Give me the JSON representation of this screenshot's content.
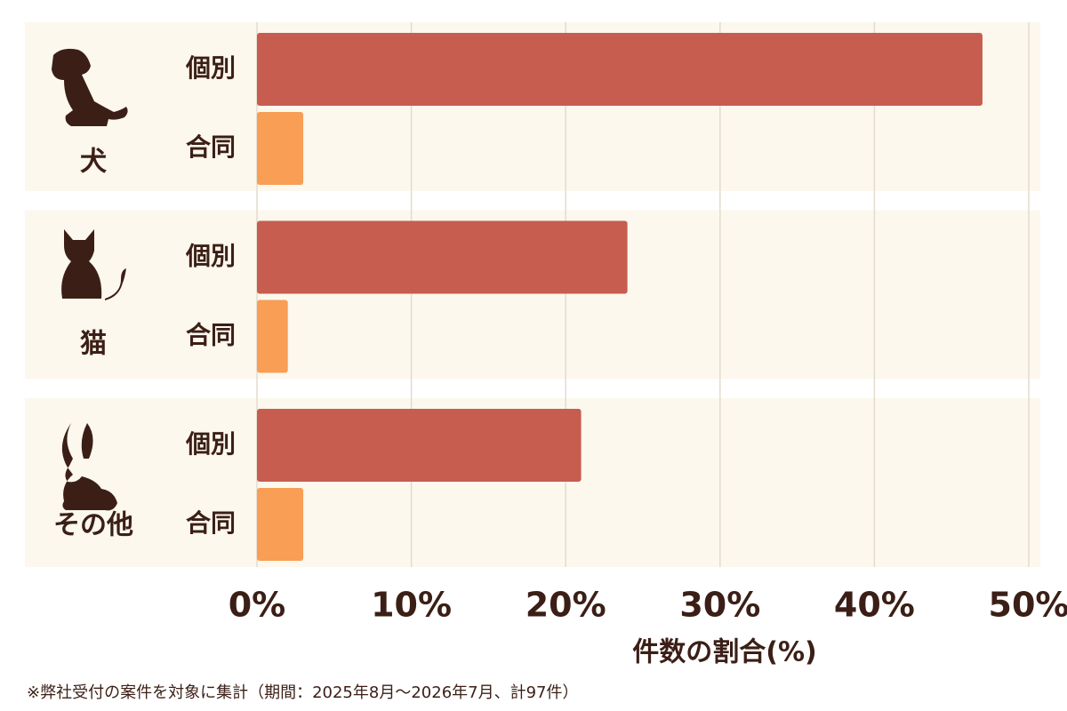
{
  "chart_data": {
    "type": "bar",
    "orientation": "horizontal",
    "categories": [
      "犬",
      "猫",
      "その他"
    ],
    "series": [
      {
        "name": "個別",
        "color": "#c65d4f",
        "values": [
          47,
          24,
          21
        ]
      },
      {
        "name": "合同",
        "color": "#f89e55",
        "values": [
          3,
          2,
          3
        ]
      }
    ],
    "xlim": [
      0,
      50
    ],
    "xticks": [
      {
        "value": 0,
        "label": "0%"
      },
      {
        "value": 10,
        "label": "10%"
      },
      {
        "value": 20,
        "label": "20%"
      },
      {
        "value": 30,
        "label": "30%"
      },
      {
        "value": 40,
        "label": "40%"
      },
      {
        "value": 50,
        "label": "50%"
      }
    ],
    "xlabel": "件数の割合(%)",
    "grid": true,
    "note": "※弊社受付の案件を対象に集計（期間：2025年8月〜2026年7月、計97件）"
  }
}
